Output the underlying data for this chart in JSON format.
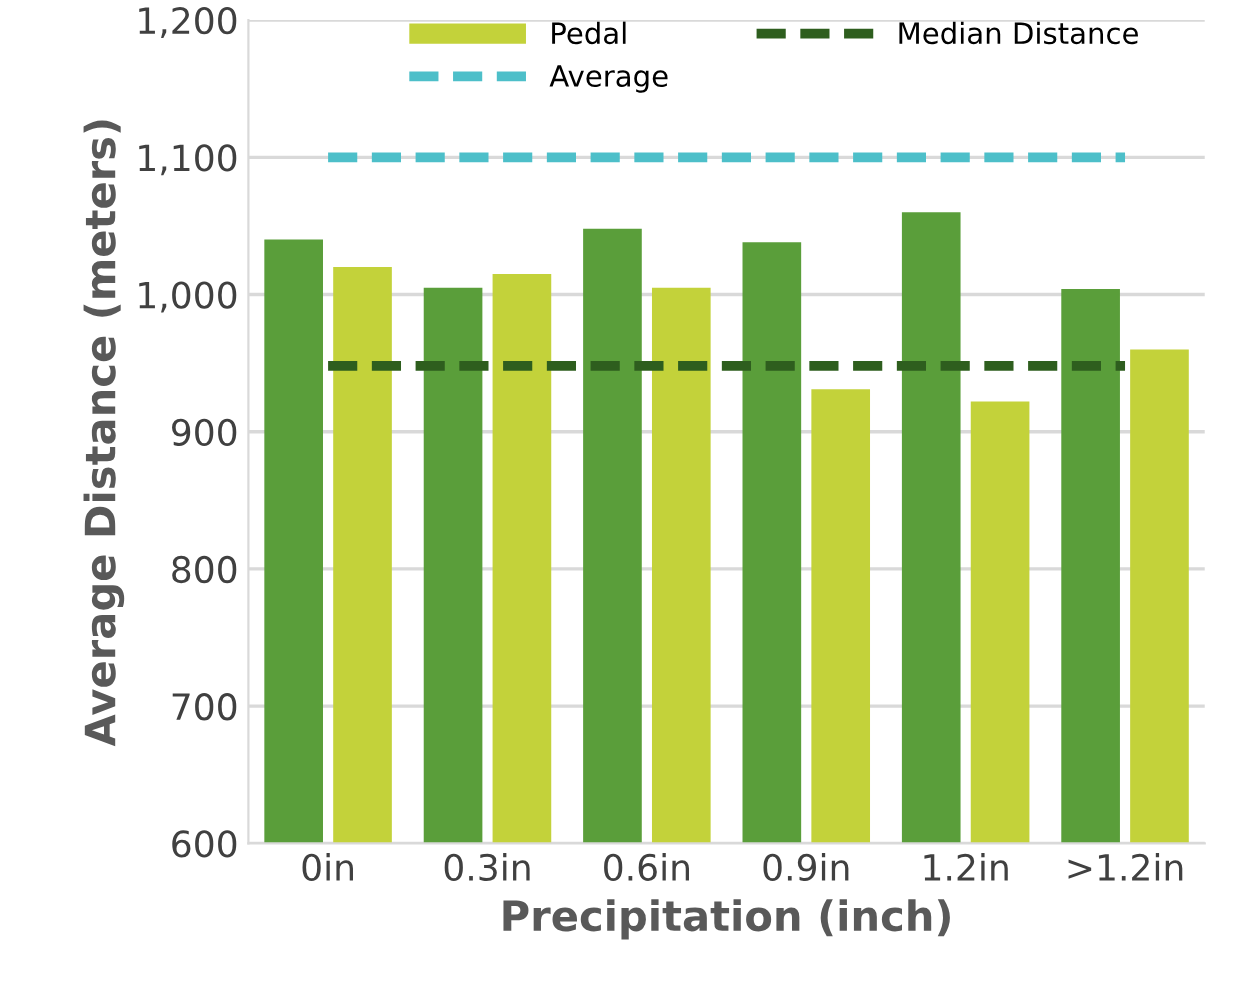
{
  "chart_data": {
    "type": "bar",
    "xlabel": "Precipitation (inch)",
    "ylabel": "Average Distance (meters)",
    "categories": [
      "0in",
      "0.3in",
      "0.6in",
      "0.9in",
      "1.2in",
      ">1.2in"
    ],
    "series": [
      {
        "color": "#5a9e3a",
        "values": [
          1040,
          1005,
          1048,
          1038,
          1060,
          1004
        ]
      },
      {
        "name": "Pedal",
        "color": "#c3d23a",
        "values": [
          1020,
          1015,
          1005,
          931,
          922,
          960
        ]
      },
      {
        "name": "Average",
        "type": "line",
        "line_style": "dashed",
        "color": "#4dbfc9",
        "values": [
          1100,
          1100,
          1100,
          1100,
          1100,
          1100
        ]
      },
      {
        "name": "Median Distance",
        "type": "line",
        "line_style": "dashed",
        "color": "#2e5e1e",
        "values": [
          948,
          948,
          948,
          948,
          948,
          948
        ]
      }
    ],
    "ylim": [
      600,
      1200
    ],
    "yticks": [
      600,
      700,
      800,
      900,
      {
        "value": 1000,
        "label": "1,000"
      },
      {
        "value": 1100,
        "label": "1,100"
      },
      {
        "value": 1200,
        "label": "1,200"
      }
    ],
    "grid": "y",
    "legend": "top",
    "marker": "none"
  }
}
